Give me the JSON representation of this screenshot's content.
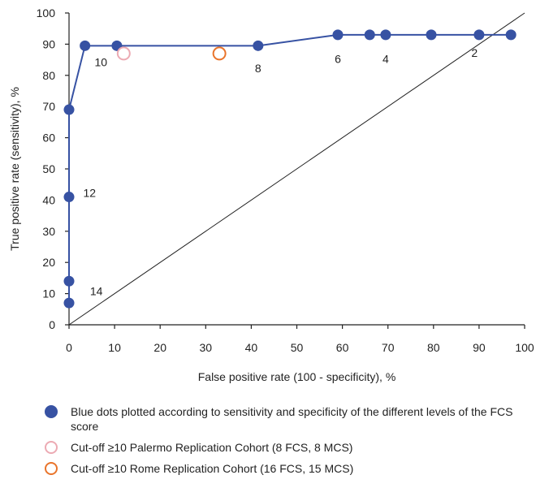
{
  "chart_data": {
    "type": "line",
    "xlabel": "False positive rate (100 - specificity), %",
    "ylabel": "True positive rate (sensitivity), %",
    "xlim": [
      0,
      100
    ],
    "ylim": [
      0,
      100
    ],
    "x_ticks": [
      "0",
      "10",
      "20",
      "30",
      "40",
      "50",
      "60",
      "70",
      "80",
      "90",
      "100"
    ],
    "y_ticks": [
      "0",
      "10",
      "20",
      "30",
      "40",
      "50",
      "60",
      "70",
      "80",
      "90",
      "100"
    ],
    "grid": false,
    "diagonal_reference": {
      "x": [
        0,
        100
      ],
      "y": [
        0,
        100
      ]
    },
    "series": [
      {
        "color": "#3752a3",
        "marker": "filled-circle",
        "line": true,
        "points": [
          {
            "x": 0,
            "y": 7
          },
          {
            "x": 0,
            "y": 14
          },
          {
            "x": 0,
            "y": 41
          },
          {
            "x": 0,
            "y": 69
          },
          {
            "x": 3.5,
            "y": 89.5
          },
          {
            "x": 10.5,
            "y": 89.5
          },
          {
            "x": 41.5,
            "y": 89.5
          },
          {
            "x": 59,
            "y": 93
          },
          {
            "x": 66,
            "y": 93
          },
          {
            "x": 69.5,
            "y": 93
          },
          {
            "x": 79.5,
            "y": 93
          },
          {
            "x": 90,
            "y": 93
          },
          {
            "x": 97,
            "y": 93
          }
        ]
      },
      {
        "color": "#ecaab3",
        "marker": "open-circle",
        "line": false,
        "points": [
          {
            "x": 12,
            "y": 87
          }
        ]
      },
      {
        "color": "#e9742b",
        "marker": "open-circle",
        "line": false,
        "points": [
          {
            "x": 33,
            "y": 87
          }
        ]
      }
    ],
    "annotations": [
      {
        "text": "14",
        "x": 6,
        "y": 9.5
      },
      {
        "text": "12",
        "x": 4.5,
        "y": 41
      },
      {
        "text": "10",
        "x": 7,
        "y": 83
      },
      {
        "text": "8",
        "x": 41.5,
        "y": 81
      },
      {
        "text": "6",
        "x": 59,
        "y": 84
      },
      {
        "text": "4",
        "x": 69.5,
        "y": 84
      },
      {
        "text": "2",
        "x": 89,
        "y": 86
      }
    ],
    "legend": {
      "placement": "bottom",
      "entries": [
        {
          "marker": "filled-circle",
          "color": "#3752a3",
          "text": "Blue dots plotted according to sensitivity and specificity of the different levels of the FCS score"
        },
        {
          "marker": "open-circle",
          "color": "#ecaab3",
          "text": "Cut-off ≥10 Palermo Replication Cohort (8 FCS, 8 MCS)"
        },
        {
          "marker": "open-circle",
          "color": "#e9742b",
          "text": "Cut-off ≥10 Rome Replication Cohort (16 FCS, 15 MCS)"
        }
      ]
    }
  }
}
